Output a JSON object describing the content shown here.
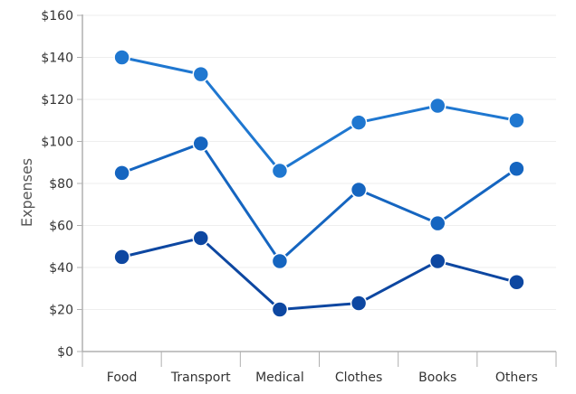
{
  "chart_data": {
    "type": "line",
    "categories": [
      "Food",
      "Transport",
      "Medical",
      "Clothes",
      "Books",
      "Others"
    ],
    "series": [
      {
        "values": [
          140,
          132,
          86,
          109,
          117,
          110
        ],
        "color": "#1f77d0"
      },
      {
        "values": [
          85,
          99,
          43,
          77,
          61,
          87
        ],
        "color": "#1565c0"
      },
      {
        "values": [
          45,
          54,
          20,
          23,
          43,
          33
        ],
        "color": "#0d47a1"
      }
    ],
    "ylabel": "Expenses",
    "xlabel": "",
    "title": "",
    "ylim": [
      0,
      160
    ],
    "yticks": [
      {
        "value": 0,
        "label": "$0"
      },
      {
        "value": 20,
        "label": "$20"
      },
      {
        "value": 40,
        "label": "$40"
      },
      {
        "value": 60,
        "label": "$60"
      },
      {
        "value": 80,
        "label": "$80"
      },
      {
        "value": 100,
        "label": "$100"
      },
      {
        "value": 120,
        "label": "$120"
      },
      {
        "value": 140,
        "label": "$140"
      },
      {
        "value": 160,
        "label": "$160"
      }
    ],
    "grid": true,
    "legend": "none",
    "colors": {
      "gridline": "#eeeeee",
      "axis": "#b0b0b0"
    }
  }
}
